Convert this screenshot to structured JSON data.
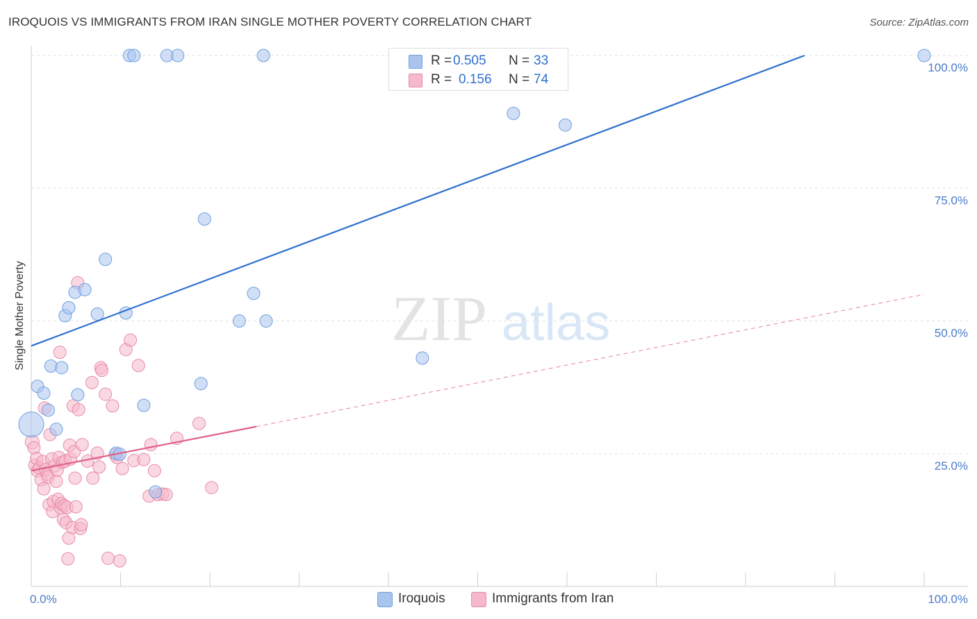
{
  "title": "IROQUOIS VS IMMIGRANTS FROM IRAN SINGLE MOTHER POVERTY CORRELATION CHART",
  "source": "Source: ZipAtlas.com",
  "watermark": {
    "zip": "ZIP",
    "atlas": "atlas"
  },
  "legend": {
    "rows": [
      {
        "r_label": "R =",
        "r_value": "0.505",
        "n_label": "N =",
        "n_value": "33"
      },
      {
        "r_label": "R =",
        "r_value": "0.156",
        "n_label": "N =",
        "n_value": "74"
      }
    ]
  },
  "bottom_legend": {
    "series1": "Iroquois",
    "series2": "Immigrants from Iran"
  },
  "colors": {
    "series1_fill": "#a9c5ee",
    "series1_stroke": "#6f9fdf",
    "series1_line": "#2d6fcf",
    "series2_fill": "#f6b8cb",
    "series2_stroke": "#e88aa8",
    "series2_line": "#e0608a",
    "grid": "#e2e2e2",
    "axis_text": "#4a7cc9"
  },
  "chart_data": {
    "type": "scatter",
    "title": "IROQUOIS VS IMMIGRANTS FROM IRAN SINGLE MOTHER POVERTY CORRELATION CHART",
    "xlabel": "",
    "ylabel": "Single Mother Poverty",
    "xlim": [
      0,
      100
    ],
    "ylim": [
      0,
      102
    ],
    "x_tick_labels": [
      "0.0%",
      "100.0%"
    ],
    "y_ticks": [
      25,
      50,
      75,
      100
    ],
    "y_tick_labels": [
      "25.0%",
      "50.0%",
      "75.0%",
      "100.0%"
    ],
    "series": [
      {
        "name": "Iroquois",
        "r": 0.505,
        "n": 33,
        "trend": {
          "x": [
            0,
            86.6
          ],
          "y": [
            45.3,
            100
          ],
          "style": "solid"
        },
        "points": [
          [
            0.0,
            30.5,
            18
          ],
          [
            0.7,
            37.7,
            9
          ],
          [
            1.4,
            36.4,
            9
          ],
          [
            1.9,
            33.2,
            9
          ],
          [
            2.2,
            41.5,
            9
          ],
          [
            2.8,
            29.6,
            9
          ],
          [
            3.4,
            41.2,
            9
          ],
          [
            3.8,
            51.0,
            9
          ],
          [
            4.2,
            52.5,
            9
          ],
          [
            4.9,
            55.4,
            9
          ],
          [
            5.2,
            36.1,
            9
          ],
          [
            6.0,
            55.9,
            9
          ],
          [
            7.4,
            51.3,
            9
          ],
          [
            8.3,
            61.6,
            9
          ],
          [
            9.5,
            25.1,
            9
          ],
          [
            9.9,
            24.9,
            9
          ],
          [
            10.6,
            51.5,
            9
          ],
          [
            11.0,
            100,
            9
          ],
          [
            11.5,
            100,
            9
          ],
          [
            12.6,
            34.1,
            9
          ],
          [
            13.9,
            17.8,
            9
          ],
          [
            15.2,
            100,
            9
          ],
          [
            16.4,
            100,
            9
          ],
          [
            19.0,
            38.2,
            9
          ],
          [
            19.4,
            69.2,
            9
          ],
          [
            23.3,
            50.0,
            9
          ],
          [
            24.9,
            55.2,
            9
          ],
          [
            26.0,
            100,
            9
          ],
          [
            26.3,
            50.0,
            9
          ],
          [
            43.8,
            43.0,
            9
          ],
          [
            54.0,
            89.1,
            9
          ],
          [
            59.8,
            86.9,
            9
          ],
          [
            100.0,
            100,
            9
          ]
        ]
      },
      {
        "name": "Immigrants from Iran",
        "r": 0.156,
        "n": 74,
        "trend_solid": {
          "x": [
            0,
            25.2
          ],
          "y": [
            21.8,
            30.1
          ]
        },
        "trend_dashed": {
          "x": [
            25.2,
            100
          ],
          "y": [
            30.1,
            55.0
          ]
        },
        "points": [
          [
            0.1,
            27.2,
            10
          ],
          [
            0.3,
            26.1,
            9
          ],
          [
            0.4,
            22.8,
            9
          ],
          [
            0.6,
            24.1,
            9
          ],
          [
            0.7,
            21.8,
            9
          ],
          [
            0.9,
            22.3,
            9
          ],
          [
            1.1,
            20.1,
            9
          ],
          [
            1.3,
            23.5,
            9
          ],
          [
            1.4,
            18.4,
            9
          ],
          [
            1.5,
            33.6,
            9
          ],
          [
            1.6,
            22.0,
            9
          ],
          [
            1.8,
            21.1,
            9
          ],
          [
            1.9,
            20.6,
            9
          ],
          [
            2.0,
            15.4,
            9
          ],
          [
            2.1,
            28.6,
            9
          ],
          [
            2.3,
            24.0,
            9
          ],
          [
            2.4,
            14.1,
            9
          ],
          [
            2.5,
            16.0,
            9
          ],
          [
            2.6,
            22.7,
            9
          ],
          [
            2.8,
            19.8,
            9
          ],
          [
            2.9,
            21.9,
            9
          ],
          [
            3.0,
            16.4,
            9
          ],
          [
            3.1,
            24.3,
            9
          ],
          [
            3.2,
            44.1,
            9
          ],
          [
            3.3,
            14.8,
            9
          ],
          [
            3.4,
            15.6,
            9
          ],
          [
            3.5,
            23.4,
            9
          ],
          [
            3.6,
            12.6,
            9
          ],
          [
            3.7,
            15.2,
            9
          ],
          [
            3.8,
            23.6,
            9
          ],
          [
            3.9,
            12.0,
            9
          ],
          [
            4.0,
            14.9,
            9
          ],
          [
            4.1,
            5.2,
            9
          ],
          [
            4.2,
            9.1,
            9
          ],
          [
            4.3,
            26.6,
            9
          ],
          [
            4.4,
            24.0,
            9
          ],
          [
            4.6,
            11.1,
            9
          ],
          [
            4.7,
            34.0,
            9
          ],
          [
            4.8,
            25.4,
            9
          ],
          [
            4.9,
            20.4,
            9
          ],
          [
            5.0,
            15.0,
            9
          ],
          [
            5.2,
            57.2,
            9
          ],
          [
            5.3,
            33.3,
            9
          ],
          [
            5.5,
            10.9,
            9
          ],
          [
            5.6,
            11.6,
            9
          ],
          [
            5.7,
            26.7,
            9
          ],
          [
            6.3,
            23.6,
            9
          ],
          [
            6.8,
            38.4,
            9
          ],
          [
            6.9,
            20.4,
            9
          ],
          [
            7.4,
            25.1,
            9
          ],
          [
            7.6,
            22.5,
            9
          ],
          [
            7.8,
            41.2,
            9
          ],
          [
            7.9,
            40.7,
            9
          ],
          [
            8.3,
            36.2,
            9
          ],
          [
            8.6,
            5.3,
            9
          ],
          [
            9.1,
            34.0,
            9
          ],
          [
            9.4,
            24.8,
            9
          ],
          [
            9.9,
            4.8,
            9
          ],
          [
            10.2,
            22.2,
            9
          ],
          [
            10.6,
            44.6,
            9
          ],
          [
            11.1,
            46.4,
            9
          ],
          [
            11.5,
            23.7,
            9
          ],
          [
            12.0,
            41.6,
            9
          ],
          [
            12.6,
            23.9,
            9
          ],
          [
            13.2,
            17.0,
            9
          ],
          [
            13.4,
            26.7,
            9
          ],
          [
            13.8,
            21.8,
            9
          ],
          [
            14.2,
            17.3,
            9
          ],
          [
            14.7,
            17.4,
            9
          ],
          [
            15.1,
            17.3,
            9
          ],
          [
            16.3,
            27.9,
            9
          ],
          [
            18.8,
            30.7,
            9
          ],
          [
            20.2,
            18.6,
            9
          ],
          [
            9.6,
            24.3,
            9
          ]
        ]
      }
    ]
  }
}
